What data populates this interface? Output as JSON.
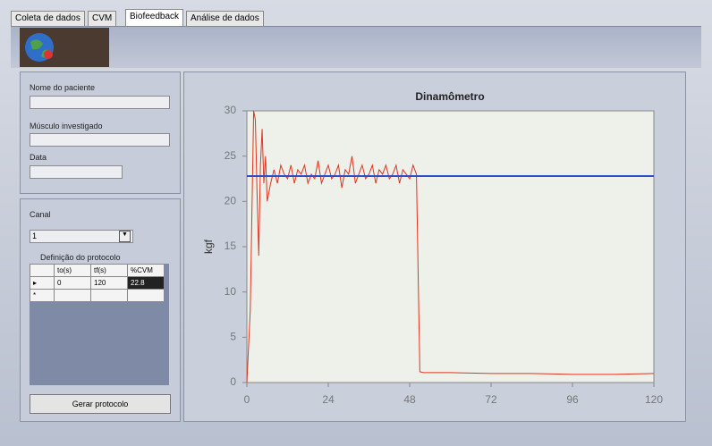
{
  "tabs": [
    "Coleta de dados",
    "CVM",
    "Biofeedback",
    "Análise de dados"
  ],
  "form": {
    "patient_label": "Nome do paciente",
    "muscle_label": "Músculo investigado",
    "date_label": "Data",
    "channel_label": "Canal",
    "channel_value": "1"
  },
  "protocol": {
    "title": "Definição do protocolo",
    "columns": [
      "to(s)",
      "tf(s)",
      "%CVM"
    ],
    "rows": [
      [
        "0",
        "120",
        "22.8"
      ]
    ],
    "new_row_marker": "*"
  },
  "button": "Gerar protocolo",
  "chart_data": {
    "type": "line",
    "title": "Dinamômetro",
    "y_label": "kgf",
    "xlim": [
      0,
      120
    ],
    "xticks": [
      0,
      24,
      48,
      72,
      96,
      120
    ],
    "ylim": [
      0,
      30
    ],
    "yticks": [
      0,
      5,
      10,
      15,
      20,
      25,
      30
    ],
    "series": [
      {
        "color": "#e0341e",
        "x": [
          0,
          1,
          2,
          2.5,
          3,
          3.5,
          4,
          4.5,
          5,
          5.5,
          6,
          7,
          8,
          9,
          10,
          11,
          12,
          13,
          14,
          15,
          16,
          17,
          18,
          19,
          20,
          21,
          22,
          23,
          24,
          25,
          26,
          27,
          28,
          29,
          30,
          31,
          32,
          33,
          34,
          35,
          36,
          37,
          38,
          39,
          40,
          41,
          42,
          43,
          44,
          45,
          46,
          47,
          48,
          49,
          50,
          50.5,
          51,
          52,
          60,
          72,
          84,
          96,
          108,
          120
        ],
        "values": [
          0,
          8,
          30,
          29,
          21,
          14,
          24,
          28,
          22,
          25,
          20,
          22,
          23.5,
          22,
          24,
          23,
          22.5,
          24,
          22,
          23.5,
          23,
          24,
          22,
          23,
          22.5,
          24.5,
          22,
          23,
          24,
          22.5,
          23,
          24,
          21.5,
          23.5,
          23,
          25,
          22,
          23,
          24,
          22.5,
          23,
          24,
          22,
          23.5,
          23,
          24,
          22.5,
          23,
          24,
          22,
          23.5,
          23,
          22.5,
          24,
          23,
          12,
          1.2,
          1.1,
          1.1,
          1.0,
          1.0,
          0.9,
          0.9,
          1.0
        ]
      },
      {
        "color": "#2a4fc8",
        "x": [
          0,
          120
        ],
        "values": [
          22.8,
          22.8
        ]
      }
    ]
  }
}
